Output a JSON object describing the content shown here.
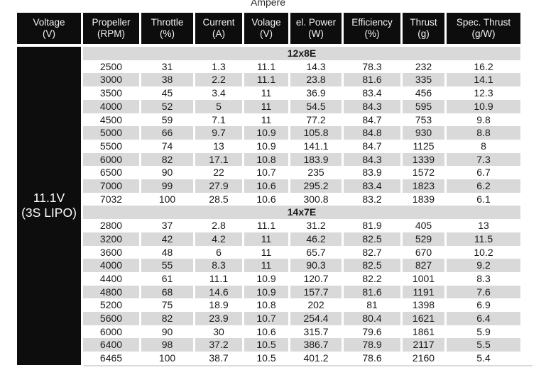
{
  "page": {
    "top_label": "Ampere"
  },
  "colors": {
    "header_bg": "#0d0d0d",
    "header_text": "#f2f2f2",
    "row_bg": "#ffffff",
    "row_alt_bg": "#d9d9d9",
    "data_text": "#1a1a1a"
  },
  "table": {
    "headers": [
      {
        "title": "Voltage",
        "unit": "(V)"
      },
      {
        "title": "Propeller",
        "unit": "(RPM)"
      },
      {
        "title": "Throttle",
        "unit": "(%)"
      },
      {
        "title": "Current",
        "unit": "(A)"
      },
      {
        "title": "Volage",
        "unit": "(V)"
      },
      {
        "title": "el. Power",
        "unit": "(W)"
      },
      {
        "title": "Efficiency",
        "unit": "(%)"
      },
      {
        "title": "Thrust",
        "unit": "(g)"
      },
      {
        "title": "Spec. Thrust",
        "unit": "(g/W)"
      }
    ],
    "voltage_group": {
      "line1": "11.1V",
      "line2": "(3S LIPO)"
    },
    "sections": [
      {
        "label": "12x8E",
        "rows": [
          [
            "2500",
            "31",
            "1.3",
            "11.1",
            "14.3",
            "78.3",
            "232",
            "16.2"
          ],
          [
            "3000",
            "38",
            "2.2",
            "11.1",
            "23.8",
            "81.6",
            "335",
            "14.1"
          ],
          [
            "3500",
            "45",
            "3.4",
            "11",
            "36.9",
            "83.4",
            "456",
            "12.3"
          ],
          [
            "4000",
            "52",
            "5",
            "11",
            "54.5",
            "84.3",
            "595",
            "10.9"
          ],
          [
            "4500",
            "59",
            "7.1",
            "11",
            "77.2",
            "84.7",
            "753",
            "9.8"
          ],
          [
            "5000",
            "66",
            "9.7",
            "10.9",
            "105.8",
            "84.8",
            "930",
            "8.8"
          ],
          [
            "5500",
            "74",
            "13",
            "10.9",
            "141.1",
            "84.7",
            "1125",
            "8"
          ],
          [
            "6000",
            "82",
            "17.1",
            "10.8",
            "183.9",
            "84.3",
            "1339",
            "7.3"
          ],
          [
            "6500",
            "90",
            "22",
            "10.7",
            "235",
            "83.9",
            "1572",
            "6.7"
          ],
          [
            "7000",
            "99",
            "27.9",
            "10.6",
            "295.2",
            "83.4",
            "1823",
            "6.2"
          ],
          [
            "7032",
            "100",
            "28.5",
            "10.6",
            "300.8",
            "83.2",
            "1839",
            "6.1"
          ]
        ]
      },
      {
        "label": "14x7E",
        "rows": [
          [
            "2800",
            "37",
            "2.8",
            "11.1",
            "31.2",
            "81.9",
            "405",
            "13"
          ],
          [
            "3200",
            "42",
            "4.2",
            "11",
            "46.2",
            "82.5",
            "529",
            "11.5"
          ],
          [
            "3600",
            "48",
            "6",
            "11",
            "65.7",
            "82.7",
            "670",
            "10.2"
          ],
          [
            "4000",
            "55",
            "8.3",
            "11",
            "90.3",
            "82.5",
            "827",
            "9.2"
          ],
          [
            "4400",
            "61",
            "11.1",
            "10.9",
            "120.7",
            "82.2",
            "1001",
            "8.3"
          ],
          [
            "4800",
            "68",
            "14.6",
            "10.9",
            "157.7",
            "81.6",
            "1191",
            "7.6"
          ],
          [
            "5200",
            "75",
            "18.9",
            "10.8",
            "202",
            "81",
            "1398",
            "6.9"
          ],
          [
            "5600",
            "82",
            "23.9",
            "10.7",
            "254.4",
            "80.4",
            "1621",
            "6.4"
          ],
          [
            "6000",
            "90",
            "30",
            "10.6",
            "315.7",
            "79.6",
            "1861",
            "5.9"
          ],
          [
            "6400",
            "98",
            "37.2",
            "10.5",
            "386.7",
            "78.9",
            "2117",
            "5.5"
          ],
          [
            "6465",
            "100",
            "38.7",
            "10.5",
            "401.2",
            "78.6",
            "2160",
            "5.4"
          ]
        ]
      }
    ]
  }
}
